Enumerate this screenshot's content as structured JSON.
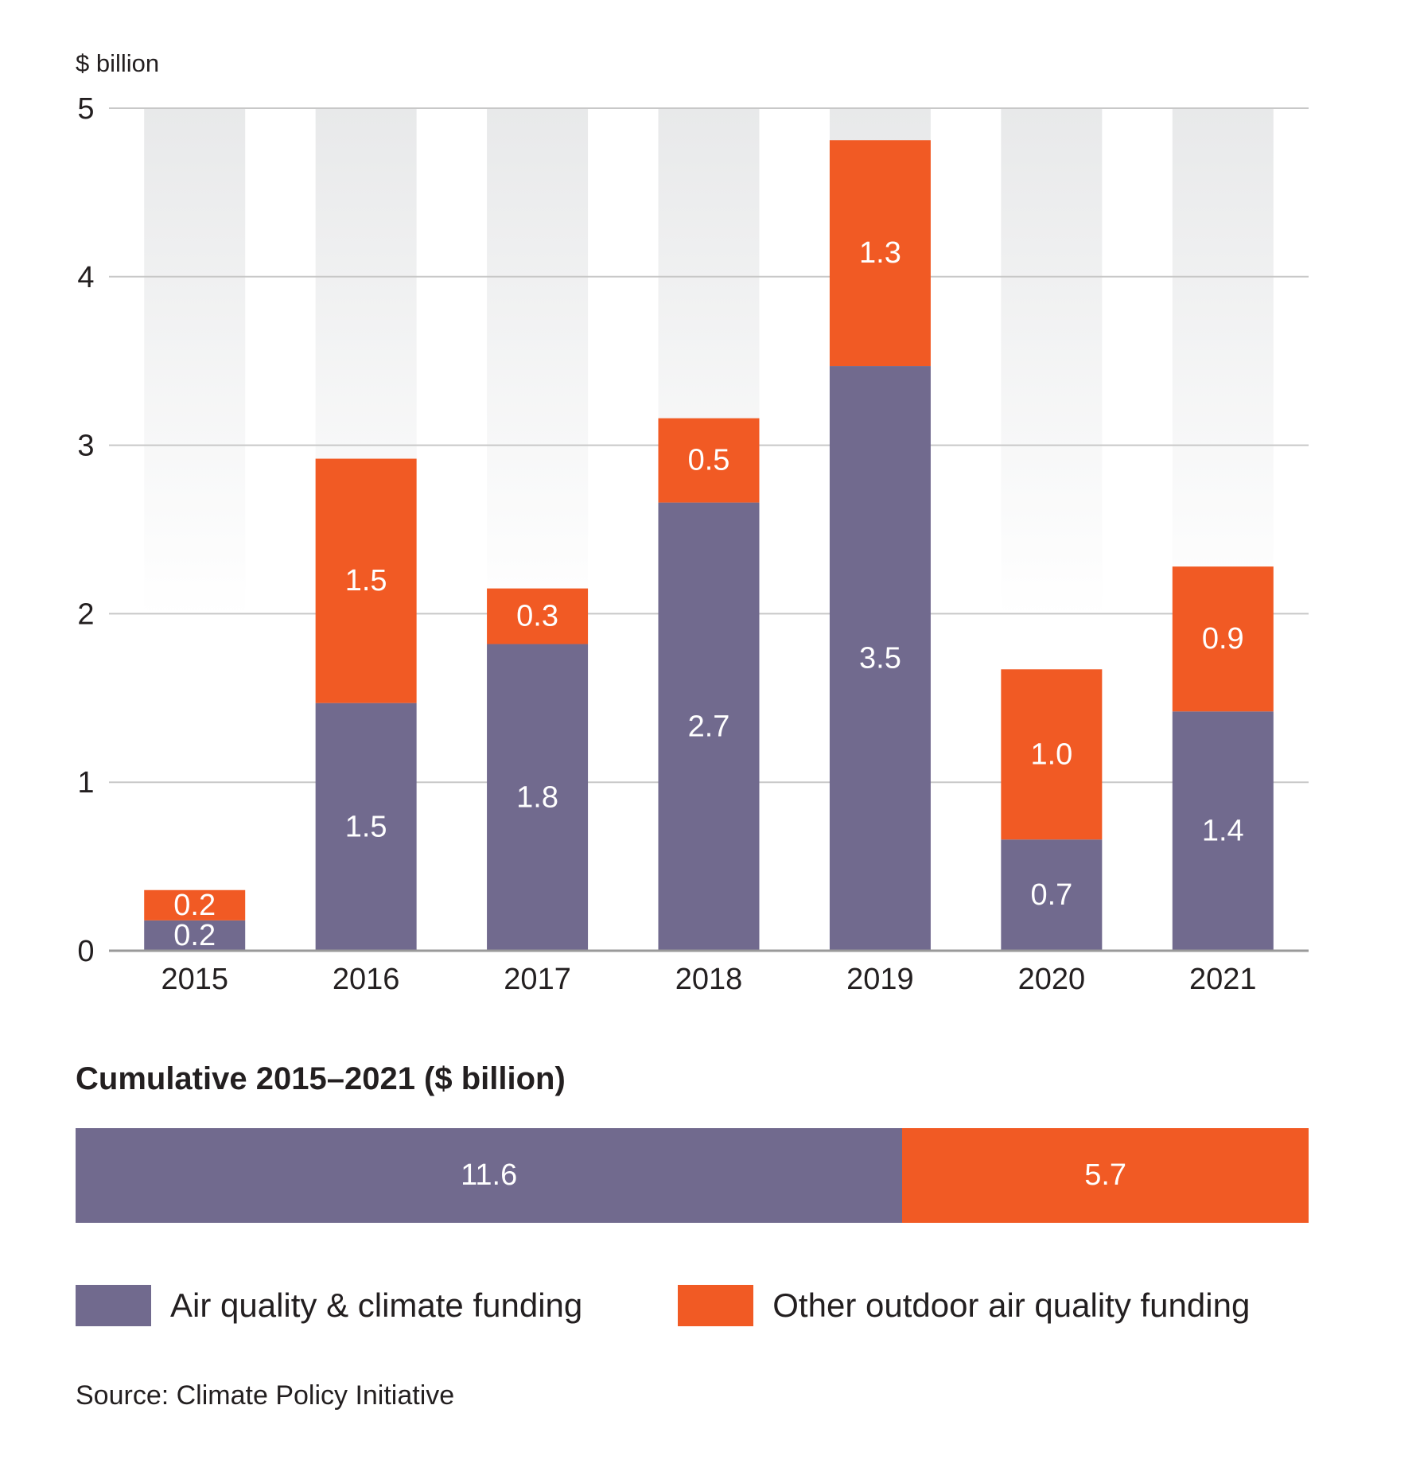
{
  "chart_data": {
    "type": "bar",
    "stacked": true,
    "ylabel": "$ billion",
    "ylim": [
      0,
      5
    ],
    "yticks": [
      0,
      1,
      2,
      3,
      4,
      5
    ],
    "grid": true,
    "categories": [
      "2015",
      "2016",
      "2017",
      "2018",
      "2019",
      "2020",
      "2021"
    ],
    "series": [
      {
        "name": "Air quality & climate funding",
        "color": "#716a8e",
        "values": [
          0.18,
          1.47,
          1.82,
          2.66,
          3.47,
          0.66,
          1.42
        ],
        "labels": [
          "0.2",
          "1.5",
          "1.8",
          "2.7",
          "3.5",
          "0.7",
          "1.4"
        ]
      },
      {
        "name": "Other outdoor air quality funding",
        "color": "#f15a24",
        "values": [
          0.18,
          1.45,
          0.33,
          0.5,
          1.34,
          1.01,
          0.86
        ],
        "labels": [
          "0.2",
          "1.5",
          "0.3",
          "0.5",
          "1.3",
          "1.0",
          "0.9"
        ]
      }
    ]
  },
  "cumulative": {
    "title": "Cumulative 2015–2021 ($ billion)",
    "segments": [
      {
        "name": "Air quality & climate funding",
        "value": 11.6,
        "label": "11.6",
        "color": "#716a8e"
      },
      {
        "name": "Other outdoor air quality funding",
        "value": 5.7,
        "label": "5.7",
        "color": "#f15a24"
      }
    ]
  },
  "legend": [
    {
      "label": "Air quality & climate funding",
      "color": "#716a8e"
    },
    {
      "label": "Other outdoor air quality funding",
      "color": "#f15a24"
    }
  ],
  "source": "Source: Climate Policy Initiative"
}
